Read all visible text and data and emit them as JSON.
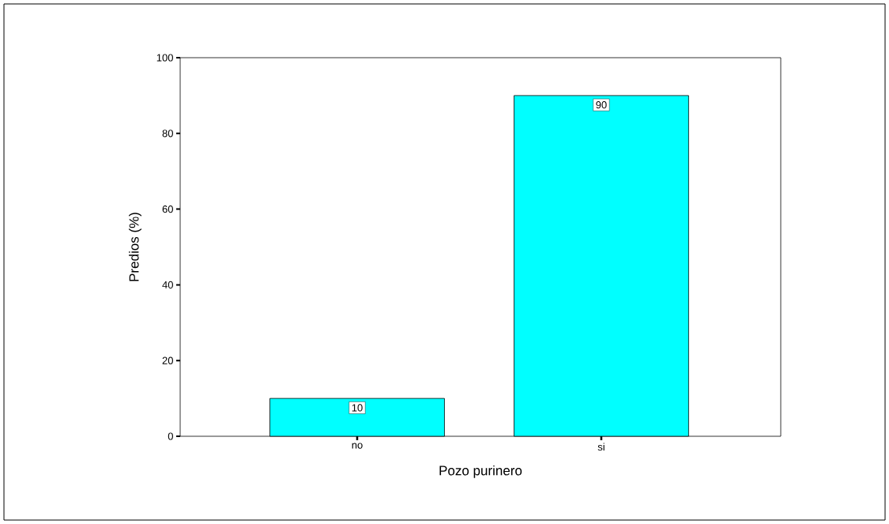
{
  "chart_data": {
    "type": "bar",
    "xlabel": "Pozo purinero",
    "ylabel": "Predios (%)",
    "categories": [
      "no",
      "si"
    ],
    "values": [
      10,
      90
    ],
    "color": "#00ffff",
    "ylim": [
      0,
      100
    ],
    "yticks": [
      0,
      20,
      40,
      60,
      80,
      100
    ],
    "data_labels": true
  }
}
